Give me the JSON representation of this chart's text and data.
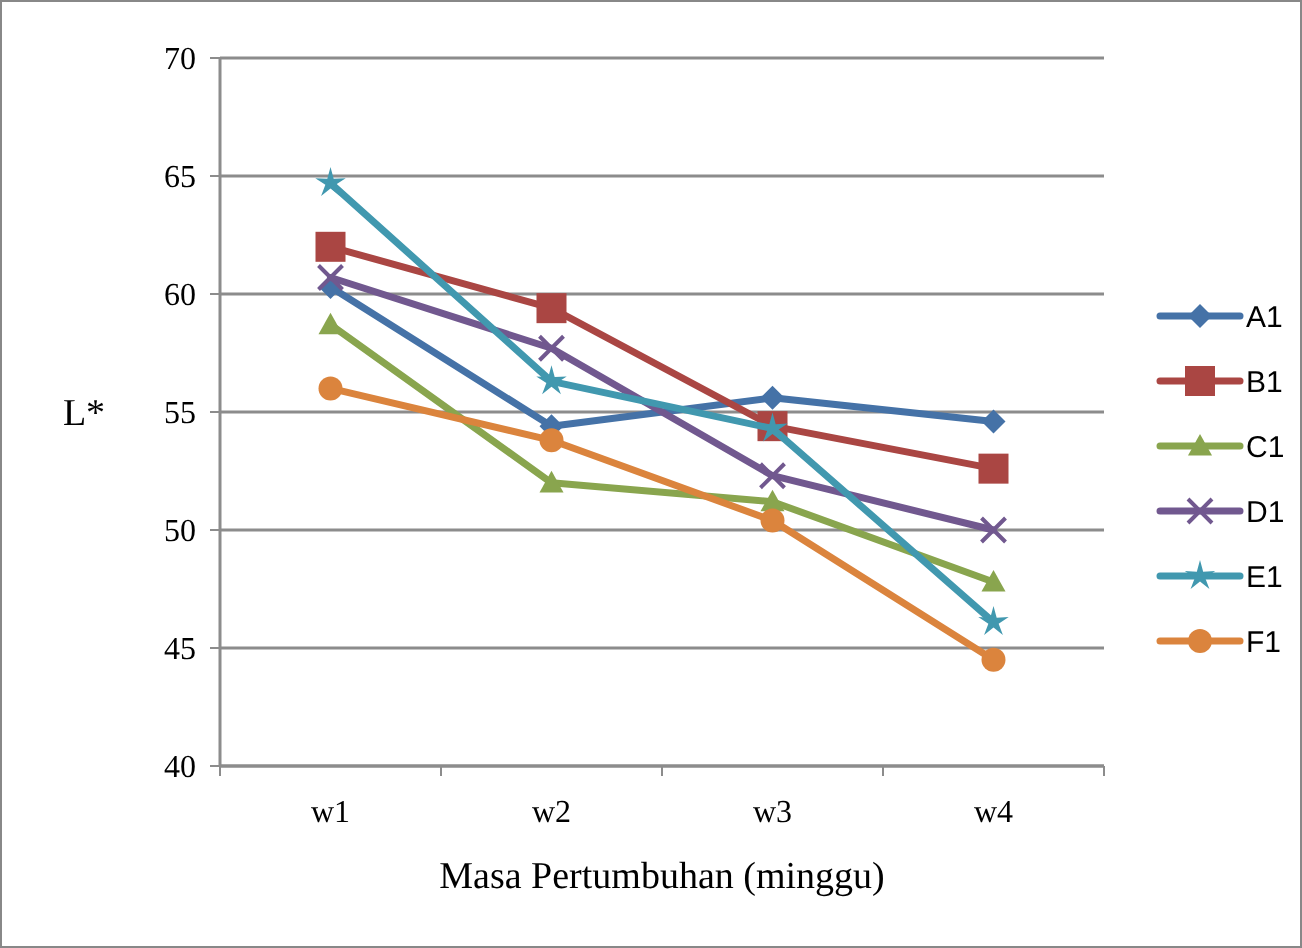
{
  "chart_data": {
    "type": "line",
    "xlabel": "Masa Pertumbuhan (minggu)",
    "ylabel": "L*",
    "categories": [
      "w1",
      "w2",
      "w3",
      "w4"
    ],
    "ylim": [
      40,
      70
    ],
    "yticks": [
      40,
      45,
      50,
      55,
      60,
      65,
      70
    ],
    "grid": "y",
    "legend": "right",
    "series": [
      {
        "name": "A1",
        "color": "#4572a7",
        "marker": "diamond",
        "values": [
          60.3,
          54.4,
          55.6,
          54.6
        ]
      },
      {
        "name": "B1",
        "color": "#aa4643",
        "marker": "square",
        "values": [
          62.0,
          59.4,
          54.4,
          52.6
        ]
      },
      {
        "name": "C1",
        "color": "#89a54e",
        "marker": "triangle",
        "values": [
          58.7,
          52.0,
          51.2,
          47.8
        ]
      },
      {
        "name": "D1",
        "color": "#71588f",
        "marker": "cross",
        "values": [
          60.7,
          57.7,
          52.3,
          50.0
        ]
      },
      {
        "name": "E1",
        "color": "#4198af",
        "marker": "star",
        "values": [
          64.7,
          56.3,
          54.3,
          46.1
        ]
      },
      {
        "name": "F1",
        "color": "#db843d",
        "marker": "circle",
        "values": [
          56.0,
          53.8,
          50.4,
          44.5
        ]
      }
    ]
  }
}
